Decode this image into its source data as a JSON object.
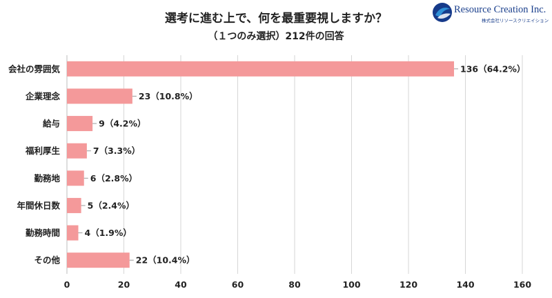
{
  "header": {
    "title": "選考に進む上で、何を最重要視しますか？",
    "subtitle": "（１つのみ選択）212件の回答"
  },
  "logo": {
    "name": "Resource Creation Inc.",
    "sub": "株式会社リソースクリエイション",
    "colors": {
      "dark": "#163a8a",
      "light": "#2e8fd6"
    }
  },
  "chart_data": {
    "type": "bar",
    "orientation": "horizontal",
    "categories": [
      "会社の雰囲気",
      "企業理念",
      "給与",
      "福利厚生",
      "勤務地",
      "年間休日数",
      "勤務時間",
      "その他"
    ],
    "values": [
      136,
      23,
      9,
      7,
      6,
      5,
      4,
      22
    ],
    "data_labels": [
      "136（64.2%）",
      "23（10.8%）",
      "9（4.2%）",
      "7（3.3%）",
      "6（2.8%）",
      "5（2.4%）",
      "4（1.9%）",
      "22（10.4%）"
    ],
    "xlim": [
      0,
      160
    ],
    "xticks": [
      0,
      20,
      40,
      60,
      80,
      100,
      120,
      140,
      160
    ],
    "grid": true,
    "bar_color": "#f4999a",
    "grid_color": "#d6d6d6"
  }
}
